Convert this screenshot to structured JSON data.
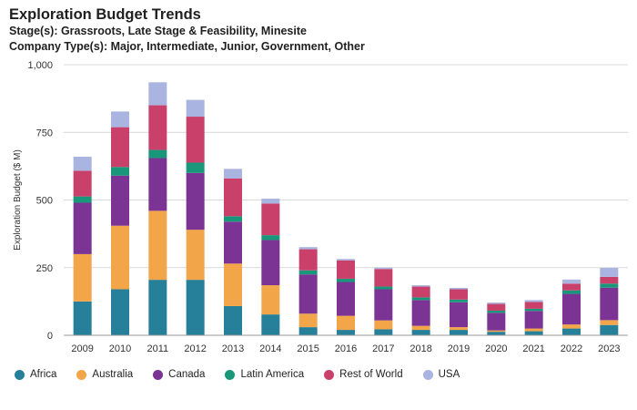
{
  "header": {
    "title": "Exploration Budget Trends",
    "stage_line": "Stage(s): Grassroots, Late Stage & Feasibility, Minesite",
    "company_line": "Company Type(s): Major, Intermediate, Junior, Government, Other"
  },
  "chart_data": {
    "type": "bar",
    "stacked": true,
    "title": "Exploration Budget Trends",
    "xlabel": "",
    "ylabel": "Exploration Budget ($ M)",
    "ylim": [
      0,
      1000
    ],
    "yticks": [
      0,
      250,
      500,
      750,
      1000
    ],
    "ytick_labels": [
      "0",
      "250",
      "500",
      "750",
      "1,000"
    ],
    "grid": true,
    "legend_position": "bottom",
    "categories": [
      "2009",
      "2010",
      "2011",
      "2012",
      "2013",
      "2014",
      "2015",
      "2016",
      "2017",
      "2018",
      "2019",
      "2020",
      "2021",
      "2022",
      "2023"
    ],
    "series": [
      {
        "name": "Africa",
        "color": "#27809a",
        "values": [
          125,
          170,
          205,
          205,
          108,
          77,
          30,
          20,
          22,
          20,
          20,
          13,
          15,
          25,
          38
        ]
      },
      {
        "name": "Australia",
        "color": "#f2a649",
        "values": [
          175,
          235,
          255,
          185,
          157,
          108,
          50,
          52,
          33,
          15,
          10,
          5,
          10,
          15,
          18
        ]
      },
      {
        "name": "Canada",
        "color": "#7b3394",
        "values": [
          190,
          185,
          195,
          210,
          155,
          167,
          145,
          125,
          115,
          95,
          92,
          65,
          65,
          113,
          120
        ]
      },
      {
        "name": "Latin America",
        "color": "#19977a",
        "values": [
          23,
          32,
          30,
          38,
          20,
          18,
          15,
          12,
          10,
          10,
          10,
          8,
          8,
          13,
          15
        ]
      },
      {
        "name": "Rest of World",
        "color": "#c9416b",
        "values": [
          95,
          147,
          165,
          170,
          140,
          117,
          78,
          68,
          65,
          40,
          38,
          25,
          25,
          25,
          25
        ]
      },
      {
        "name": "USA",
        "color": "#a9b4e0",
        "values": [
          52,
          58,
          85,
          62,
          35,
          18,
          8,
          5,
          5,
          5,
          5,
          5,
          7,
          15,
          33
        ]
      }
    ]
  }
}
